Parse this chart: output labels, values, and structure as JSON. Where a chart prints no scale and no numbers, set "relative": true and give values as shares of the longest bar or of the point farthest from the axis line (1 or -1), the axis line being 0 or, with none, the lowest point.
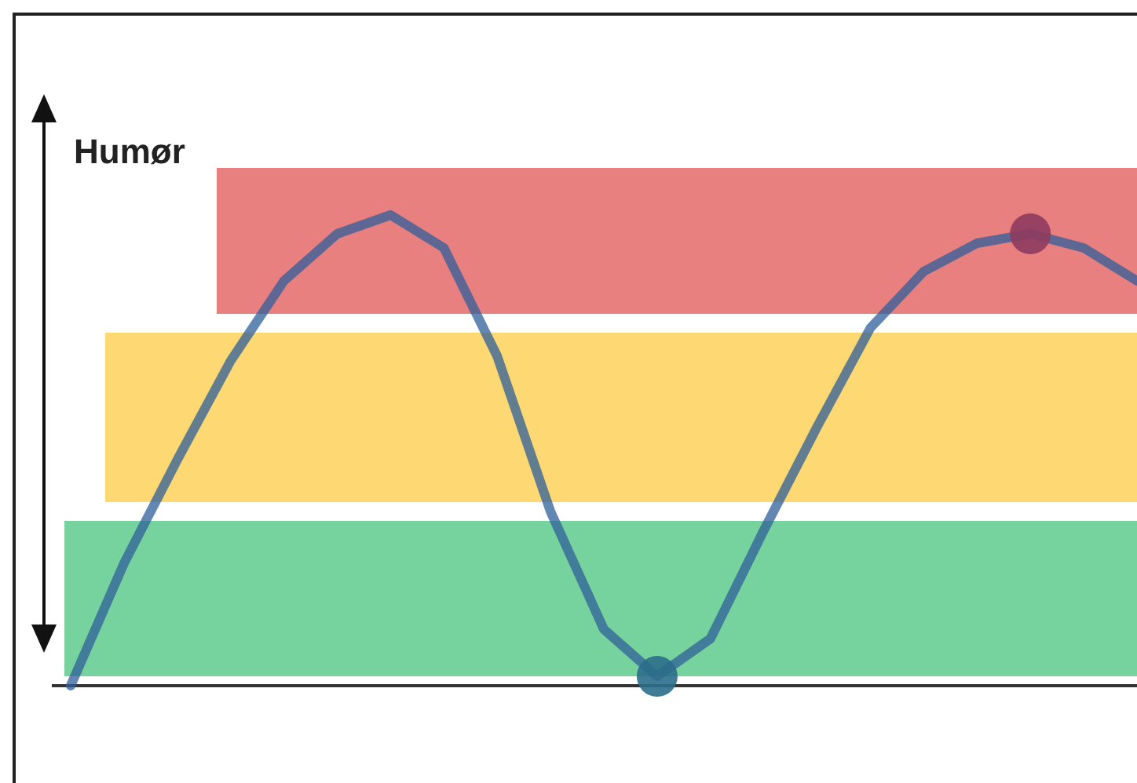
{
  "chart_data": {
    "type": "line",
    "relative": true,
    "ylabel": "Humør",
    "categories": [
      null,
      null,
      null,
      null,
      null,
      null,
      null,
      null,
      null,
      null,
      null,
      null,
      null,
      null,
      null,
      null,
      null,
      null,
      null,
      null,
      null
    ],
    "series": [
      {
        "color": "#2f5f9a",
        "values": [
          0,
          0.26,
          0.48,
          0.69,
          0.86,
          0.96,
          1,
          0.93,
          0.7,
          0.37,
          0.12,
          0.02,
          0.1,
          0.33,
          0.55,
          0.76,
          0.88,
          0.94,
          0.96,
          0.93,
          0.86
        ]
      }
    ],
    "bands": [
      {
        "axis": "y",
        "from": 0.79,
        "to": 1.1,
        "color": "#e98080"
      },
      {
        "axis": "y",
        "from": 0.39,
        "to": 0.75,
        "color": "#fdd873"
      },
      {
        "axis": "y",
        "from": 0.02,
        "to": 0.35,
        "color": "#77d39d"
      }
    ],
    "marker": "none"
  }
}
